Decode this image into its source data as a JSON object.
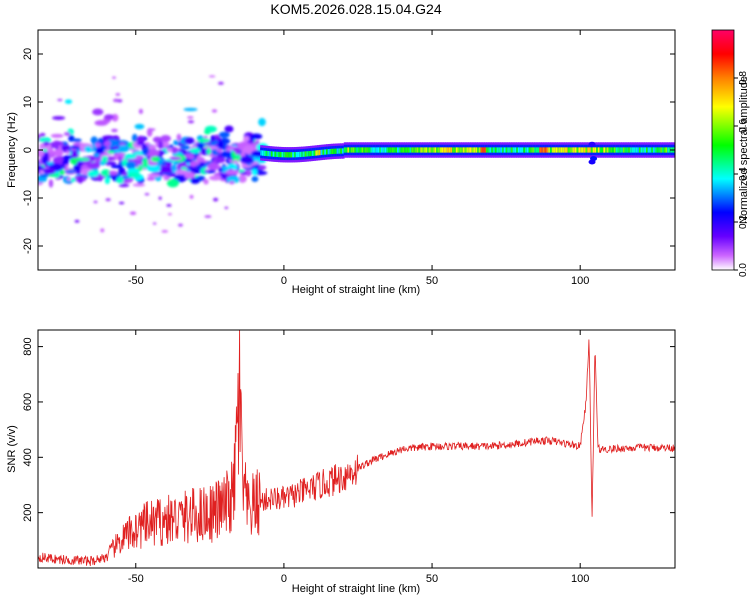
{
  "title": "KOM5.2026.028.15.04.G24",
  "chart_data": [
    {
      "type": "heatmap",
      "xlabel": "Height of straight line (km)",
      "ylabel": "Frequency (Hz)",
      "xlim": [
        -83,
        132
      ],
      "ylim": [
        -25,
        25
      ],
      "xticks": [
        -50,
        0,
        50,
        100
      ],
      "yticks": [
        -20,
        -10,
        0,
        10,
        20
      ],
      "colorbar": {
        "label": "Normalized spectral amplitude",
        "range": [
          0,
          1
        ],
        "ticks": [
          "0.0",
          "0.2",
          "0.4",
          "0.6",
          "0.8"
        ],
        "colormap": [
          "#ffffff",
          "#cc66ff",
          "#6600ff",
          "#0000ff",
          "#00ffff",
          "#00ff00",
          "#ffff00",
          "#ff8000",
          "#ff0000",
          "#ff0066"
        ]
      },
      "description_points": [
        {
          "x": -75,
          "y": -2.5,
          "amp": 0.3
        },
        {
          "x": -60,
          "y": -1.5,
          "amp": 0.25
        },
        {
          "x": -45,
          "y": -1.5,
          "amp": 0.25
        },
        {
          "x": -30,
          "y": -2.5,
          "amp": 0.3
        },
        {
          "x": -15,
          "y": -1.0,
          "amp": 0.35
        },
        {
          "x": 0,
          "y": -0.5,
          "amp": 0.55
        },
        {
          "x": 10,
          "y": -1.0,
          "amp": 0.5
        },
        {
          "x": 25,
          "y": 0.0,
          "amp": 0.55
        },
        {
          "x": 50,
          "y": 0.0,
          "amp": 0.6
        },
        {
          "x": 70,
          "y": 0.0,
          "amp": 0.65
        },
        {
          "x": 88,
          "y": 0.0,
          "amp": 0.8
        },
        {
          "x": 105,
          "y": 0.0,
          "amp": 0.55
        },
        {
          "x": 125,
          "y": 0.0,
          "amp": 0.6
        }
      ]
    },
    {
      "type": "line",
      "xlabel": "Height of straight line (km)",
      "ylabel": "SNR (v/v)",
      "xlim": [
        -83,
        132
      ],
      "ylim": [
        0,
        860
      ],
      "xticks": [
        -50,
        0,
        50,
        100
      ],
      "yticks": [
        200,
        400,
        600,
        800
      ],
      "color": "#e02020",
      "series": [
        {
          "x": [
            -83,
            -75,
            -65,
            -60,
            -55,
            -50,
            -45,
            -40,
            -35,
            -30,
            -25,
            -20,
            -17,
            -15,
            -14,
            -12,
            -10,
            -5,
            0,
            5,
            10,
            15,
            20,
            25,
            30,
            35,
            40,
            50,
            60,
            70,
            80,
            85,
            90,
            95,
            100,
            102,
            103,
            104,
            105,
            106,
            108,
            110,
            120,
            132
          ],
          "y": [
            40,
            30,
            25,
            40,
            100,
            140,
            160,
            170,
            180,
            190,
            200,
            220,
            260,
            640,
            300,
            200,
            230,
            250,
            250,
            270,
            290,
            310,
            330,
            360,
            390,
            410,
            430,
            440,
            440,
            440,
            450,
            460,
            460,
            450,
            440,
            600,
            840,
            160,
            810,
            430,
            430,
            430,
            435,
            435
          ]
        }
      ]
    }
  ]
}
